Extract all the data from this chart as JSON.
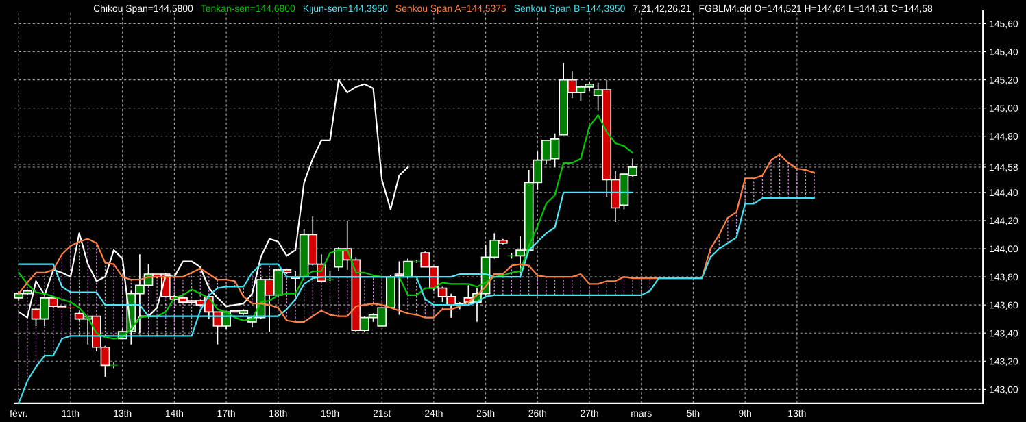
{
  "chart_data": {
    "type": "candlestick",
    "categories": [
      "févr.",
      null,
      null,
      null,
      null,
      null,
      "11th",
      null,
      null,
      null,
      null,
      null,
      "13th",
      null,
      null,
      null,
      null,
      null,
      "14th",
      null,
      null,
      null,
      null,
      null,
      "17th",
      null,
      null,
      null,
      null,
      null,
      "18th",
      null,
      null,
      null,
      null,
      null,
      "19th",
      null,
      null,
      null,
      null,
      null,
      "21st",
      null,
      null,
      null,
      null,
      null,
      "24th",
      null,
      null,
      null,
      null,
      null,
      "25th",
      null,
      null,
      null,
      null,
      null,
      "26th",
      null,
      null,
      null,
      null,
      null,
      "27th",
      null,
      null,
      null,
      null,
      null,
      "mars",
      null,
      null,
      null,
      null,
      null,
      "5th",
      null,
      null,
      null,
      null,
      null,
      "9th",
      null,
      null,
      null,
      null,
      null,
      "13th",
      null,
      null,
      null,
      null,
      null,
      null,
      null,
      null,
      null,
      null,
      null,
      null,
      null,
      null,
      null,
      null,
      null,
      null,
      null,
      null,
      null
    ],
    "ohlc": [
      [
        143.65,
        143.7,
        143.63,
        143.68
      ],
      [
        143.68,
        143.71,
        143.67,
        143.7
      ],
      [
        143.57,
        143.58,
        143.45,
        143.5
      ],
      [
        143.5,
        143.66,
        143.45,
        143.65
      ],
      [
        143.65,
        143.66,
        143.58,
        143.59
      ],
      [
        143.59,
        143.59,
        143.58,
        143.58
      ],
      [
        143.58,
        143.58,
        143.57,
        143.58
      ],
      [
        143.54,
        143.55,
        143.49,
        143.5
      ],
      [
        143.5,
        143.52,
        143.32,
        143.52
      ],
      [
        143.52,
        143.52,
        143.27,
        143.3
      ],
      [
        143.3,
        143.31,
        143.09,
        143.17
      ],
      [
        143.17,
        143.19,
        143.15,
        143.17
      ],
      [
        143.36,
        143.43,
        143.36,
        143.41
      ],
      [
        143.41,
        143.7,
        143.32,
        143.68
      ],
      [
        143.68,
        143.96,
        143.4,
        143.74
      ],
      [
        143.74,
        143.89,
        143.74,
        143.82
      ],
      [
        143.82,
        143.82,
        143.79,
        143.8
      ],
      [
        143.82,
        143.83,
        143.66,
        143.66
      ],
      [
        143.66,
        143.67,
        143.63,
        143.64
      ],
      [
        143.65,
        143.66,
        143.62,
        143.62
      ],
      [
        143.63,
        143.63,
        143.62,
        143.62
      ],
      [
        143.63,
        143.63,
        143.6,
        143.6
      ],
      [
        143.66,
        143.66,
        143.5,
        143.55
      ],
      [
        143.55,
        143.55,
        143.32,
        143.45
      ],
      [
        143.45,
        143.55,
        143.43,
        143.55
      ],
      [
        143.56,
        143.56,
        143.55,
        143.55
      ],
      [
        143.54,
        143.57,
        143.53,
        143.56
      ],
      [
        143.48,
        143.52,
        143.44,
        143.51
      ],
      [
        143.51,
        143.8,
        143.5,
        143.78
      ],
      [
        143.78,
        143.79,
        143.41,
        143.67
      ],
      [
        143.67,
        143.86,
        143.66,
        143.85
      ],
      [
        143.85,
        143.86,
        143.82,
        143.83
      ],
      [
        143.8,
        143.84,
        143.66,
        143.79
      ],
      [
        143.8,
        144.14,
        143.8,
        144.1
      ],
      [
        144.1,
        144.23,
        143.88,
        143.89
      ],
      [
        143.89,
        143.96,
        143.77,
        143.77
      ],
      [
        143.78,
        143.84,
        143.77,
        143.78
      ],
      [
        143.87,
        144.01,
        143.84,
        144.0
      ],
      [
        144.0,
        144.2,
        143.85,
        143.92
      ],
      [
        143.92,
        143.94,
        143.41,
        143.42
      ],
      [
        143.42,
        143.52,
        143.41,
        143.51
      ],
      [
        143.51,
        143.54,
        143.48,
        143.53
      ],
      [
        143.45,
        143.58,
        143.45,
        143.58
      ],
      [
        143.58,
        143.81,
        143.58,
        143.8
      ],
      [
        143.82,
        143.91,
        143.53,
        143.81
      ],
      [
        143.8,
        143.93,
        143.79,
        143.91
      ],
      [
        143.91,
        143.92,
        143.9,
        143.91
      ],
      [
        143.97,
        143.98,
        143.87,
        143.87
      ],
      [
        143.87,
        143.87,
        143.7,
        143.72
      ],
      [
        143.72,
        143.73,
        143.62,
        143.66
      ],
      [
        143.66,
        143.68,
        143.51,
        143.6
      ],
      [
        143.6,
        143.62,
        143.57,
        143.61
      ],
      [
        143.65,
        143.74,
        143.61,
        143.62
      ],
      [
        143.62,
        143.72,
        143.48,
        143.68
      ],
      [
        143.68,
        144.03,
        143.67,
        143.94
      ],
      [
        143.94,
        144.11,
        143.93,
        144.06
      ],
      [
        144.06,
        144.07,
        144.03,
        144.04
      ],
      [
        143.95,
        143.97,
        143.93,
        143.95
      ],
      [
        143.95,
        144.09,
        143.83,
        143.99
      ],
      [
        143.99,
        144.56,
        143.99,
        144.47
      ],
      [
        144.47,
        144.69,
        144.42,
        144.63
      ],
      [
        144.63,
        144.77,
        144.6,
        144.77
      ],
      [
        144.64,
        144.82,
        144.58,
        144.78
      ],
      [
        144.81,
        145.32,
        144.81,
        145.2
      ],
      [
        145.2,
        145.26,
        145.07,
        145.11
      ],
      [
        145.11,
        145.16,
        145.05,
        145.15
      ],
      [
        145.15,
        145.19,
        145.12,
        145.17
      ],
      [
        145.09,
        145.18,
        144.98,
        145.13
      ],
      [
        145.13,
        145.2,
        144.37,
        144.49
      ],
      [
        144.49,
        144.55,
        144.19,
        144.29
      ],
      [
        144.31,
        144.53,
        144.28,
        144.53
      ],
      [
        144.521,
        144.64,
        144.51,
        144.58
      ],
      null,
      null,
      null,
      null,
      null,
      null,
      null,
      null,
      null,
      null,
      null,
      null,
      null,
      null,
      null,
      null,
      null,
      null,
      null,
      null,
      null,
      null,
      null,
      null,
      null,
      null,
      null,
      null,
      null,
      null,
      null,
      null,
      null,
      null,
      null,
      null,
      null,
      null,
      null,
      null
    ],
    "colors": [
      "#008000",
      "#008000",
      "#d40000",
      "#008000",
      "#d40000",
      "#d40000",
      "#d40000",
      "#d40000",
      "#008000",
      "#d40000",
      "#d40000",
      "#008000",
      "#008000",
      "#008000",
      "#008000",
      "#008000",
      "#d40000",
      "#d40000",
      "#d40000",
      "#d40000",
      "#d40000",
      "#d40000",
      "#d40000",
      "#d40000",
      "#008000",
      "#d40000",
      "#008000",
      "#008000",
      "#008000",
      "#d40000",
      "#008000",
      "#d40000",
      "#d40000",
      "#008000",
      "#d40000",
      "#d40000",
      "#008000",
      "#008000",
      "#d40000",
      "#d40000",
      "#008000",
      "#008000",
      "#008000",
      "#008000",
      "#d40000",
      "#008000",
      "#008000",
      "#d40000",
      "#d40000",
      "#d40000",
      "#d40000",
      "#008000",
      "#d40000",
      "#008000",
      "#008000",
      "#008000",
      "#d40000",
      "#008000",
      "#008000",
      "#008000",
      "#008000",
      "#008000",
      "#008000",
      "#008000",
      "#d40000",
      "#008000",
      "#008000",
      "#008000",
      "#d40000",
      "#d40000",
      "#008000",
      "#008000",
      null,
      null,
      null,
      null,
      null,
      null,
      null,
      null,
      null,
      null,
      null,
      null,
      null,
      null,
      null,
      null,
      null,
      null,
      null,
      null,
      null,
      null,
      null,
      null,
      null,
      null,
      null,
      null,
      null,
      null,
      null,
      null,
      null,
      null,
      null,
      null,
      null,
      null,
      null,
      null
    ],
    "series": [
      {
        "type": "line",
        "name": "Chikou Span=144,5800",
        "color": "#ffffff",
        "values": [
          143.55,
          143.51,
          143.77,
          143.67,
          143.85,
          143.83,
          143.8,
          144.11,
          143.89,
          143.77,
          143.8,
          143.99,
          143.93,
          143.41,
          143.52,
          143.52,
          143.58,
          143.81,
          143.8,
          143.91,
          143.91,
          143.87,
          143.72,
          143.65,
          143.59,
          143.6,
          143.61,
          143.68,
          143.94,
          144.07,
          144.05,
          143.95,
          143.99,
          144.47,
          144.64,
          144.77,
          144.77,
          145.2,
          145.11,
          145.15,
          145.17,
          145.14,
          144.49,
          144.28,
          144.52,
          144.58,
          null,
          null,
          null,
          null,
          null,
          null,
          null,
          null,
          null,
          null,
          null,
          null,
          null,
          null,
          null,
          null,
          null,
          null,
          null,
          null,
          null,
          null,
          null,
          null,
          null,
          null,
          null,
          null,
          null,
          null,
          null,
          null,
          null,
          null,
          null,
          null,
          null,
          null,
          null,
          null,
          null,
          null,
          null,
          null,
          null,
          null,
          null,
          null,
          null,
          null,
          null,
          null,
          null,
          null,
          null,
          null,
          null,
          null,
          null,
          null,
          null,
          null,
          null,
          null,
          null,
          null
        ]
      },
      {
        "type": "line",
        "name": "Tenkan-sen=144,6800",
        "color": "#00c800",
        "values": [
          143.83,
          143.75,
          143.69,
          143.68,
          143.66,
          143.64,
          143.62,
          143.58,
          143.51,
          143.4,
          143.37,
          143.36,
          143.37,
          143.43,
          143.51,
          143.52,
          143.52,
          143.55,
          143.65,
          143.67,
          143.71,
          143.68,
          143.65,
          143.57,
          143.55,
          143.51,
          143.49,
          143.5,
          143.62,
          143.63,
          143.67,
          143.68,
          143.68,
          143.8,
          143.84,
          143.84,
          143.97,
          143.99,
          143.99,
          143.83,
          143.83,
          143.81,
          143.8,
          143.8,
          143.8,
          143.67,
          143.67,
          143.72,
          143.72,
          143.76,
          143.75,
          143.75,
          143.75,
          143.73,
          143.76,
          143.8,
          143.81,
          143.83,
          143.84,
          144.02,
          144.16,
          144.32,
          144.38,
          144.61,
          144.61,
          144.64,
          144.87,
          144.95,
          144.83,
          144.75,
          144.73,
          144.68,
          null,
          null,
          null,
          null,
          null,
          null,
          null,
          null,
          null,
          null,
          null,
          null,
          null,
          null,
          null,
          null,
          null,
          null,
          null,
          null,
          null,
          null,
          null,
          null,
          null,
          null,
          null,
          null,
          null,
          null,
          null,
          null,
          null,
          null,
          null,
          null,
          null,
          null,
          null,
          null
        ]
      },
      {
        "type": "line",
        "name": "Kijun-sen=144,3950",
        "color": "#50e8f8",
        "values": [
          143.89,
          143.89,
          143.89,
          143.89,
          143.89,
          143.73,
          143.69,
          143.69,
          143.69,
          143.69,
          143.6,
          143.6,
          143.6,
          143.6,
          143.6,
          143.52,
          143.52,
          143.52,
          143.52,
          143.52,
          143.52,
          143.52,
          143.52,
          143.52,
          143.52,
          143.52,
          143.52,
          143.52,
          143.52,
          143.52,
          143.52,
          143.57,
          143.64,
          143.75,
          143.79,
          143.8,
          143.8,
          143.8,
          143.8,
          143.8,
          143.8,
          143.8,
          143.8,
          143.8,
          143.8,
          143.8,
          143.8,
          143.8,
          143.8,
          143.8,
          143.8,
          143.82,
          143.82,
          143.82,
          143.82,
          143.8,
          143.8,
          143.8,
          143.8,
          143.99,
          144.05,
          144.11,
          144.15,
          144.4,
          144.4,
          144.4,
          144.4,
          144.4,
          144.4,
          144.4,
          144.4,
          144.4,
          null,
          null,
          null,
          null,
          null,
          null,
          null,
          null,
          null,
          null,
          null,
          null,
          null,
          null,
          null,
          null,
          null,
          null,
          null,
          null,
          null,
          null,
          null,
          null,
          null,
          null,
          null,
          null,
          null,
          null,
          null,
          null,
          null,
          null,
          null,
          null,
          null,
          null,
          null,
          null
        ]
      },
      {
        "type": "line",
        "name": "Senkou Span A=144,5375",
        "color": "#ff8040",
        "values": [
          143.68,
          143.76,
          143.83,
          143.83,
          143.85,
          143.96,
          144.02,
          144.05,
          144.07,
          144.04,
          143.9,
          143.89,
          143.8,
          143.78,
          143.78,
          143.8,
          143.8,
          143.8,
          143.8,
          143.8,
          143.83,
          143.86,
          143.82,
          143.78,
          143.78,
          143.77,
          143.66,
          143.61,
          143.61,
          143.6,
          143.58,
          143.49,
          143.48,
          143.48,
          143.52,
          143.56,
          143.53,
          143.52,
          143.52,
          143.59,
          143.6,
          143.61,
          143.6,
          143.58,
          143.56,
          143.54,
          143.53,
          143.51,
          143.51,
          143.57,
          143.57,
          143.59,
          143.62,
          143.67,
          143.73,
          143.82,
          143.82,
          143.88,
          143.89,
          143.88,
          143.81,
          143.8,
          143.8,
          143.8,
          143.8,
          143.82,
          143.75,
          143.75,
          143.77,
          143.77,
          143.8,
          143.79,
          143.79,
          143.79,
          143.79,
          143.79,
          143.79,
          143.79,
          143.79,
          143.79,
          144.0,
          144.1,
          144.22,
          144.26,
          144.5,
          144.5,
          144.52,
          144.63,
          144.67,
          144.61,
          144.57,
          144.56,
          144.54,
          null,
          null,
          null,
          null,
          null,
          null,
          null,
          null,
          null,
          null,
          null,
          null,
          null,
          null,
          null,
          null,
          null,
          null,
          null
        ]
      },
      {
        "type": "line",
        "name": "Senkou Span B=144,3950",
        "color": "#40e0f0",
        "values": [
          142.9,
          143.06,
          143.16,
          143.24,
          143.24,
          143.36,
          143.38,
          143.38,
          143.38,
          143.38,
          143.38,
          143.38,
          143.38,
          143.38,
          143.38,
          143.38,
          143.38,
          143.38,
          143.38,
          143.38,
          143.38,
          143.56,
          143.67,
          143.72,
          143.73,
          143.73,
          143.73,
          143.83,
          143.89,
          143.89,
          143.89,
          143.8,
          143.8,
          143.8,
          143.8,
          143.8,
          143.8,
          143.8,
          143.8,
          143.8,
          143.8,
          143.8,
          143.8,
          143.8,
          143.8,
          143.8,
          143.8,
          143.64,
          143.6,
          143.6,
          143.6,
          143.6,
          143.6,
          143.62,
          143.66,
          143.67,
          143.67,
          143.67,
          143.67,
          143.67,
          143.67,
          143.67,
          143.67,
          143.67,
          143.67,
          143.67,
          143.67,
          143.67,
          143.67,
          143.67,
          143.67,
          143.67,
          143.67,
          143.7,
          143.79,
          143.79,
          143.79,
          143.79,
          143.79,
          143.79,
          143.94,
          144.0,
          144.04,
          144.08,
          144.32,
          144.32,
          144.36,
          144.36,
          144.36,
          144.36,
          144.36,
          144.36,
          144.36,
          null,
          null,
          null,
          null,
          null,
          null,
          null,
          null,
          null,
          null,
          null,
          null,
          null,
          null,
          null,
          null,
          null,
          null,
          null
        ]
      }
    ],
    "ylim": [
      142.9,
      145.69
    ],
    "yticks": [
      {
        "value": 143.0,
        "label": "143,00"
      },
      {
        "value": 143.2,
        "label": "143,20"
      },
      {
        "value": 143.4,
        "label": "143,40"
      },
      {
        "value": 143.6,
        "label": "143,60"
      },
      {
        "value": 143.8,
        "label": "143,80"
      },
      {
        "value": 144.0,
        "label": "144,00"
      },
      {
        "value": 144.2,
        "label": "144,20"
      },
      {
        "value": 144.4,
        "label": "144,40"
      },
      {
        "value": 144.6,
        "label": null
      },
      {
        "value": 144.8,
        "label": "144,80"
      },
      {
        "value": 145.0,
        "label": "145,00"
      },
      {
        "value": 145.2,
        "label": "145,20"
      },
      {
        "value": 145.4,
        "label": "145,40"
      },
      {
        "value": 145.6,
        "label": "145,60"
      },
      {
        "value": 144.58,
        "label": "144,58"
      }
    ],
    "grid": true,
    "legend": "top",
    "annotations": [
      "7,21,42,26,21",
      "FGBLM4.cld O=144,521 H=144,64 L=144,51 C=144,58"
    ]
  }
}
